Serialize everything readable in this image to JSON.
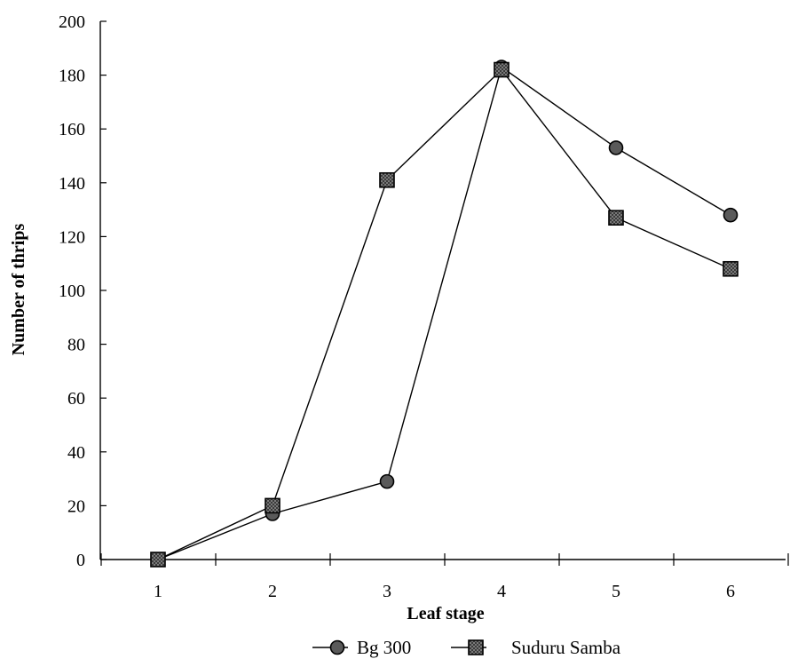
{
  "chart_data": {
    "type": "line",
    "xlabel": "Leaf stage",
    "ylabel": "Number of thrips",
    "categories": [
      "1",
      "2",
      "3",
      "4",
      "5",
      "6"
    ],
    "yticks": [
      "0",
      "20",
      "40",
      "60",
      "80",
      "100",
      "120",
      "140",
      "160",
      "180",
      "200"
    ],
    "ylim": [
      0,
      200
    ],
    "grid": false,
    "legend_position": "bottom",
    "series": [
      {
        "name": "Bg 300",
        "marker": "circle",
        "values": [
          0,
          17,
          29,
          183,
          153,
          128
        ]
      },
      {
        "name": "Suduru Samba",
        "marker": "square",
        "values": [
          0,
          20,
          141,
          182,
          127,
          108
        ]
      }
    ]
  }
}
